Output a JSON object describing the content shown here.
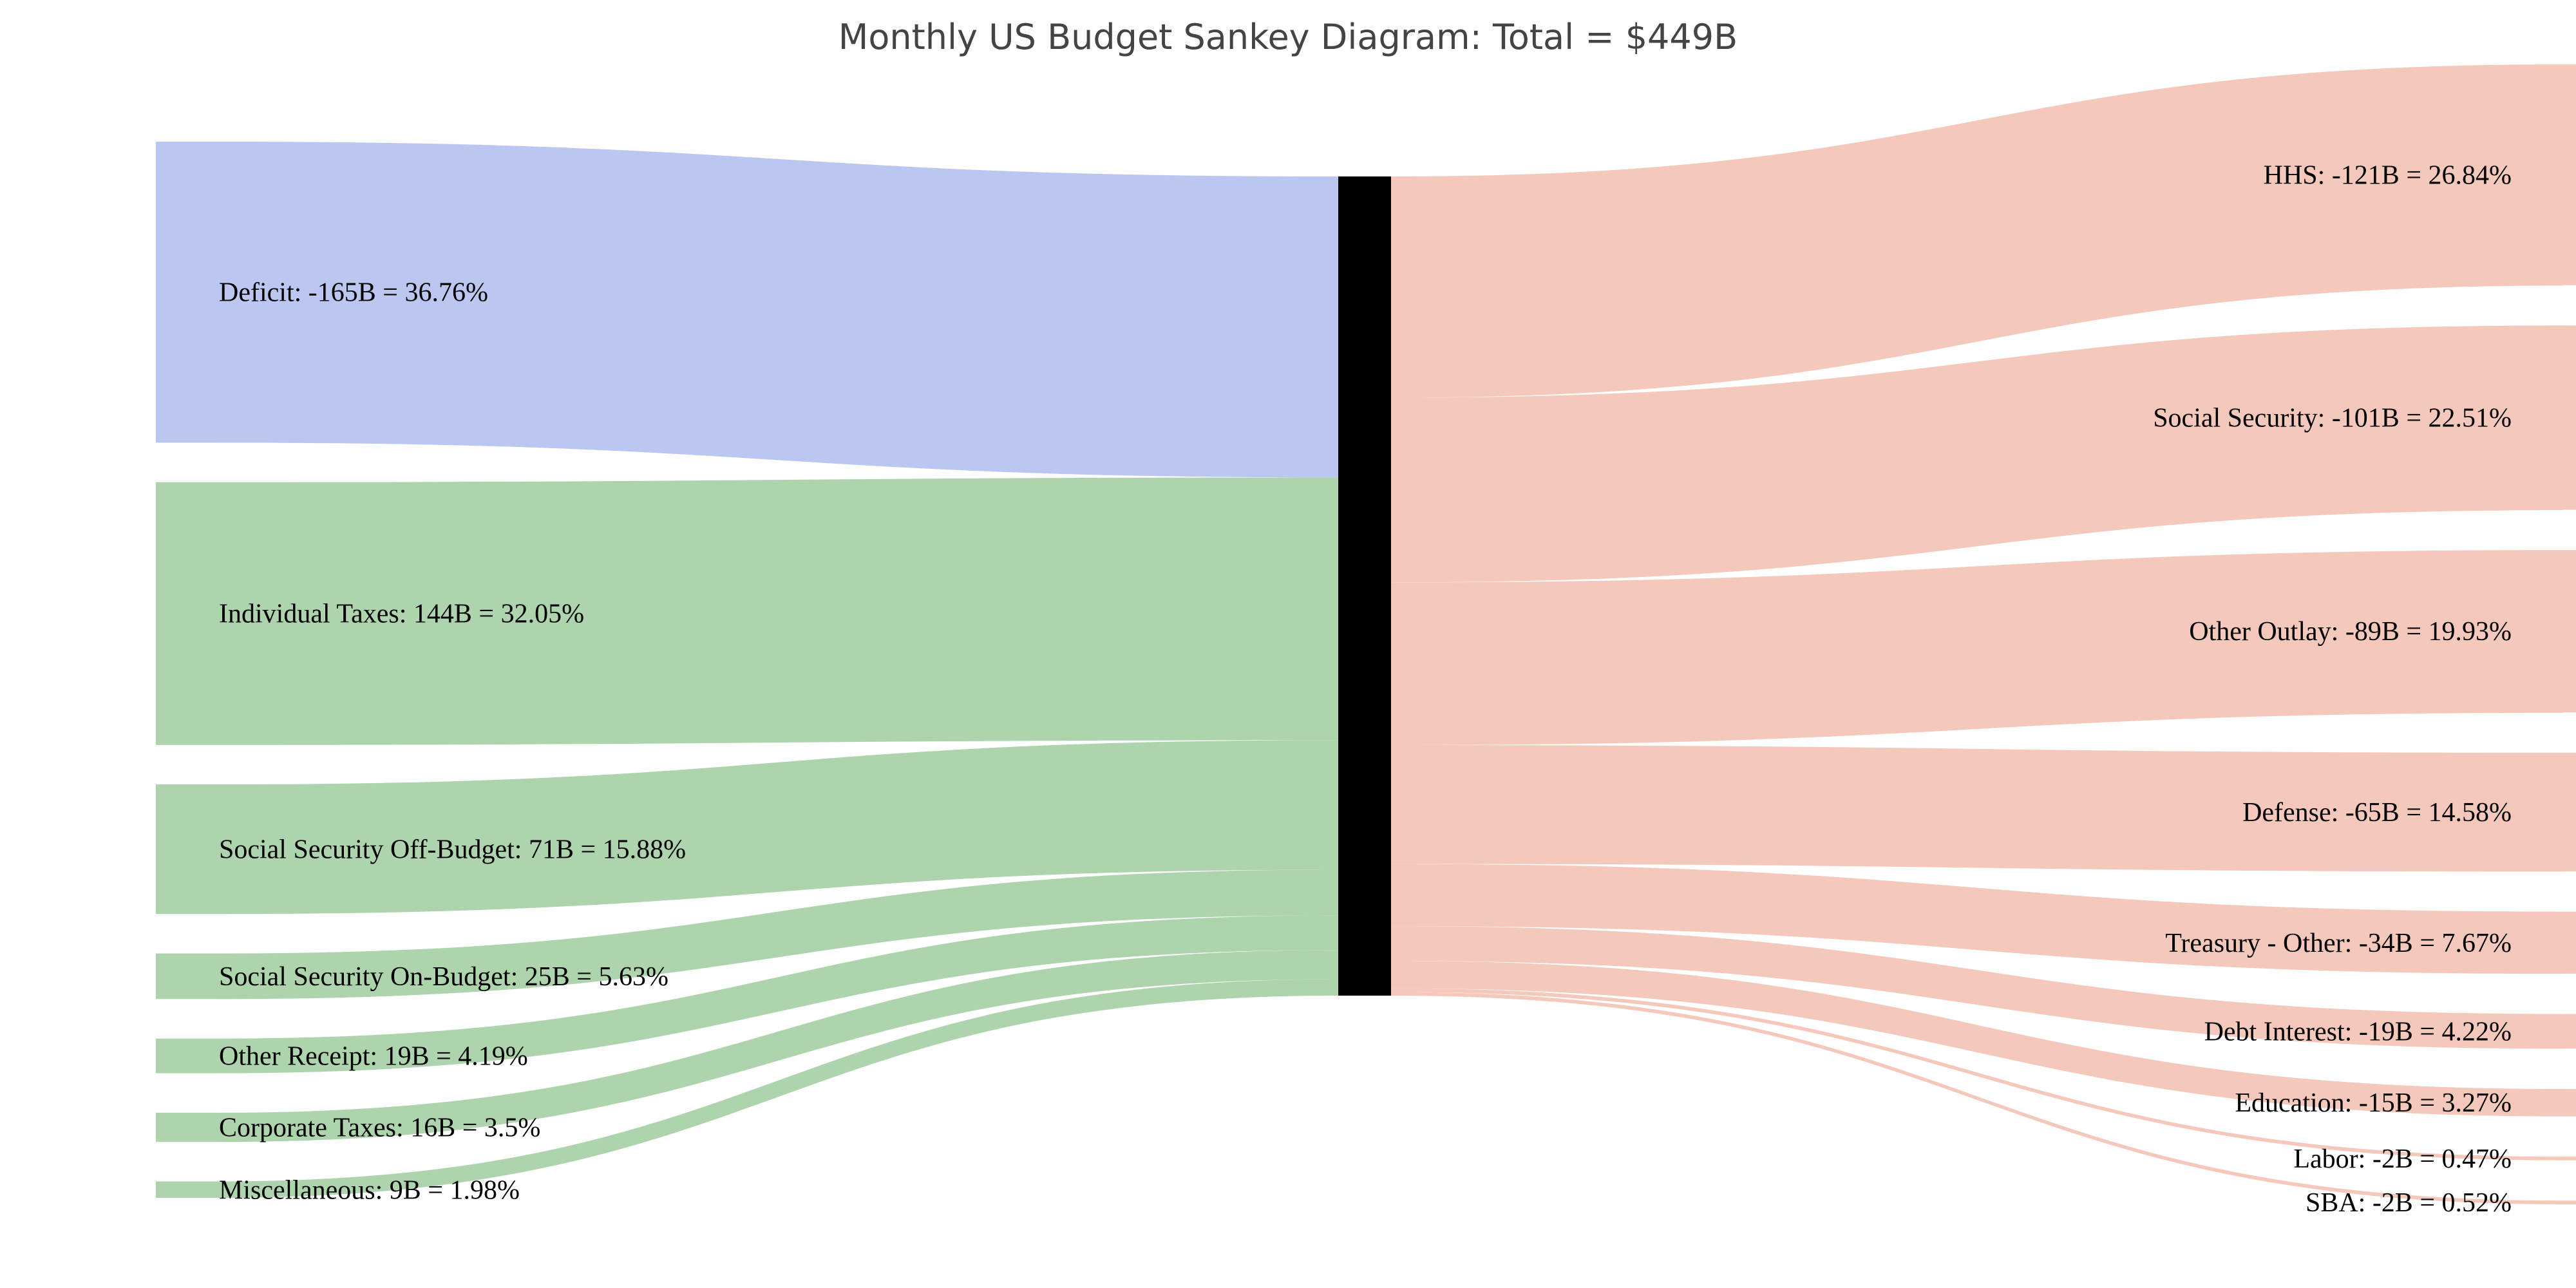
{
  "title": "Monthly US Budget Sankey Diagram: Total = $449B",
  "colors": {
    "deficit": "#bbc7f0",
    "receipt": "#aed4ae",
    "outlay": "#f4c8bb",
    "center_node": "#000000",
    "background": "#ffffff"
  },
  "chart_data": {
    "type": "sankey",
    "total": "$449B",
    "sources": [
      {
        "label": "Deficit: -165B = 36.76%",
        "value": 165,
        "kind": "deficit"
      },
      {
        "label": "Individual Taxes: 144B = 32.05%",
        "value": 144,
        "kind": "receipt"
      },
      {
        "label": "Social Security Off-Budget: 71B = 15.88%",
        "value": 71,
        "kind": "receipt"
      },
      {
        "label": "Social Security On-Budget: 25B = 5.63%",
        "value": 25,
        "kind": "receipt"
      },
      {
        "label": "Other Receipt: 19B = 4.19%",
        "value": 19,
        "kind": "receipt"
      },
      {
        "label": "Corporate Taxes: 16B = 3.5%",
        "value": 16,
        "kind": "receipt"
      },
      {
        "label": "Miscellaneous: 9B = 1.98%",
        "value": 9,
        "kind": "receipt"
      }
    ],
    "targets": [
      {
        "label": "HHS: -121B = 26.84%",
        "value": 121
      },
      {
        "label": "Social Security: -101B = 22.51%",
        "value": 101
      },
      {
        "label": "Other Outlay: -89B = 19.93%",
        "value": 89
      },
      {
        "label": "Defense: -65B = 14.58%",
        "value": 65
      },
      {
        "label": "Treasury - Other: -34B = 7.67%",
        "value": 34
      },
      {
        "label": "Debt Interest: -19B = 4.22%",
        "value": 19
      },
      {
        "label": "Education: -15B = 3.27%",
        "value": 15
      },
      {
        "label": "Labor: -2B = 0.47%",
        "value": 2
      },
      {
        "label": "SBA: -2B = 0.52%",
        "value": 2
      }
    ]
  }
}
